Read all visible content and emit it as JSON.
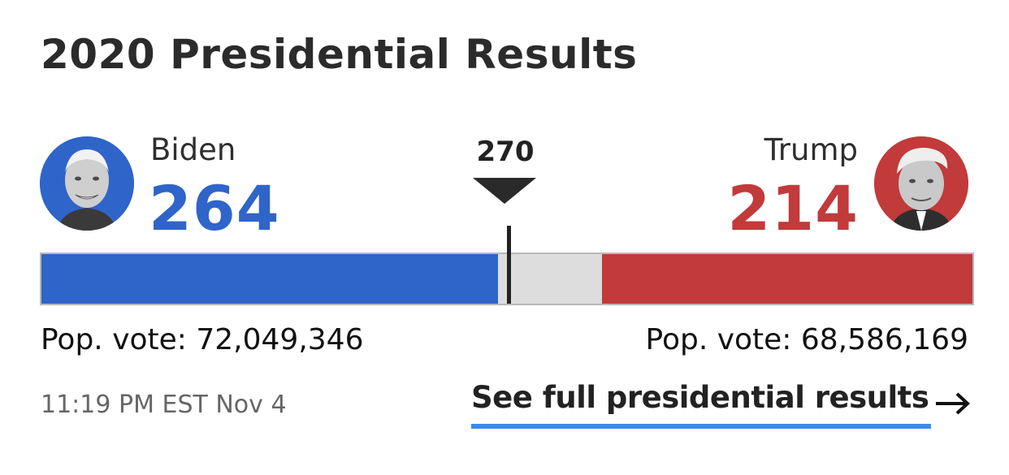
{
  "title": "2020 Presidential Results",
  "threshold": {
    "label": "270",
    "value": 270
  },
  "total_electoral_votes": 538,
  "candidates": {
    "biden": {
      "name": "Biden",
      "electoral_votes": "264",
      "popular_vote": "Pop. vote: 72,049,346",
      "color": "#2f64c9",
      "avatar_icon": "biden-portrait"
    },
    "trump": {
      "name": "Trump",
      "electoral_votes": "214",
      "popular_vote": "Pop. vote: 68,586,169",
      "color": "#c23a3a",
      "avatar_icon": "trump-portrait"
    }
  },
  "timestamp": "11:19 PM EST Nov 4",
  "full_results_link": "See full presidential results",
  "link_underline_color": "#3b8beb"
}
